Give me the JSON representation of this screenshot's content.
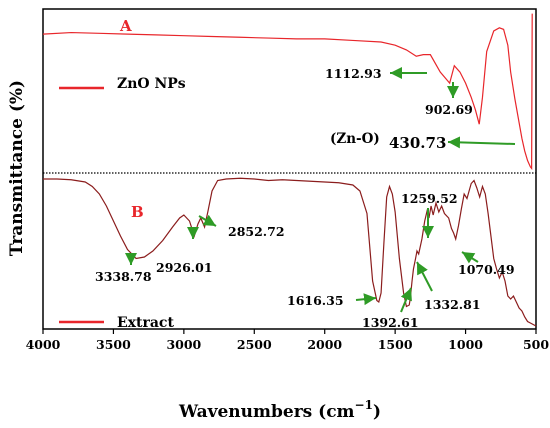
{
  "chart_data": {
    "type": "line",
    "xlabel": "Wavenumbers (cm",
    "xlabel_sup": "−1",
    "xlabel_close": ")",
    "ylabel": "Transmittance (%)",
    "xlim": [
      4000,
      500
    ],
    "x_reversed": true,
    "x_ticks": [
      4000,
      3500,
      3000,
      2500,
      2000,
      1500,
      1000,
      500
    ],
    "grid": false,
    "panels": [
      {
        "id": "A",
        "label": "A",
        "legend": "ZnO NPs",
        "legend_position": "top-left",
        "color": "#e8262b",
        "series": [
          [
            4000,
            0.86
          ],
          [
            3800,
            0.87
          ],
          [
            3600,
            0.865
          ],
          [
            3400,
            0.86
          ],
          [
            3200,
            0.855
          ],
          [
            3000,
            0.85
          ],
          [
            2800,
            0.845
          ],
          [
            2600,
            0.84
          ],
          [
            2400,
            0.835
          ],
          [
            2200,
            0.83
          ],
          [
            2000,
            0.83
          ],
          [
            1800,
            0.82
          ],
          [
            1600,
            0.81
          ],
          [
            1500,
            0.79
          ],
          [
            1420,
            0.76
          ],
          [
            1350,
            0.72
          ],
          [
            1300,
            0.73
          ],
          [
            1250,
            0.73
          ],
          [
            1180,
            0.62
          ],
          [
            1113,
            0.55
          ],
          [
            1080,
            0.66
          ],
          [
            1040,
            0.62
          ],
          [
            1000,
            0.55
          ],
          [
            960,
            0.46
          ],
          [
            930,
            0.38
          ],
          [
            903,
            0.29
          ],
          [
            880,
            0.46
          ],
          [
            850,
            0.75
          ],
          [
            800,
            0.88
          ],
          [
            760,
            0.9
          ],
          [
            730,
            0.89
          ],
          [
            700,
            0.79
          ],
          [
            680,
            0.62
          ],
          [
            650,
            0.45
          ],
          [
            620,
            0.3
          ],
          [
            600,
            0.2
          ],
          [
            580,
            0.12
          ],
          [
            560,
            0.06
          ],
          [
            540,
            0.02
          ],
          [
            531,
            0.01
          ],
          [
            529,
            0.5
          ],
          [
            527,
            0.99
          ]
        ],
        "annotations": [
          {
            "text": "1112.93",
            "at": 1113,
            "y": 0.55
          },
          {
            "text": "902.69",
            "at": 903,
            "y": 0.29
          },
          {
            "text": "(Zn-O)",
            "at": 531,
            "y": 0.2
          },
          {
            "text": "430.73",
            "at": 531,
            "y": 0.2
          }
        ]
      },
      {
        "id": "B",
        "label": "B",
        "legend": "Extract",
        "legend_position": "bottom-left",
        "color": "#8b1d1d",
        "series": [
          [
            4000,
            0.98
          ],
          [
            3900,
            0.98
          ],
          [
            3800,
            0.975
          ],
          [
            3700,
            0.96
          ],
          [
            3650,
            0.93
          ],
          [
            3600,
            0.88
          ],
          [
            3550,
            0.8
          ],
          [
            3500,
            0.7
          ],
          [
            3450,
            0.6
          ],
          [
            3400,
            0.51
          ],
          [
            3339,
            0.45
          ],
          [
            3280,
            0.46
          ],
          [
            3220,
            0.5
          ],
          [
            3150,
            0.57
          ],
          [
            3080,
            0.66
          ],
          [
            3030,
            0.72
          ],
          [
            3000,
            0.74
          ],
          [
            2960,
            0.7
          ],
          [
            2926,
            0.6
          ],
          [
            2900,
            0.68
          ],
          [
            2880,
            0.72
          ],
          [
            2853,
            0.66
          ],
          [
            2830,
            0.76
          ],
          [
            2800,
            0.9
          ],
          [
            2760,
            0.97
          ],
          [
            2700,
            0.98
          ],
          [
            2600,
            0.985
          ],
          [
            2500,
            0.98
          ],
          [
            2400,
            0.97
          ],
          [
            2300,
            0.975
          ],
          [
            2200,
            0.97
          ],
          [
            2100,
            0.965
          ],
          [
            2000,
            0.96
          ],
          [
            1900,
            0.955
          ],
          [
            1800,
            0.94
          ],
          [
            1750,
            0.9
          ],
          [
            1700,
            0.75
          ],
          [
            1660,
            0.3
          ],
          [
            1630,
            0.17
          ],
          [
            1616,
            0.16
          ],
          [
            1600,
            0.22
          ],
          [
            1580,
            0.55
          ],
          [
            1560,
            0.86
          ],
          [
            1540,
            0.93
          ],
          [
            1520,
            0.88
          ],
          [
            1500,
            0.76
          ],
          [
            1470,
            0.45
          ],
          [
            1440,
            0.22
          ],
          [
            1420,
            0.13
          ],
          [
            1400,
            0.14
          ],
          [
            1393,
            0.18
          ],
          [
            1380,
            0.3
          ],
          [
            1370,
            0.38
          ],
          [
            1355,
            0.45
          ],
          [
            1345,
            0.5
          ],
          [
            1333,
            0.48
          ],
          [
            1310,
            0.58
          ],
          [
            1290,
            0.7
          ],
          [
            1270,
            0.78
          ],
          [
            1260,
            0.72
          ],
          [
            1245,
            0.8
          ],
          [
            1230,
            0.74
          ],
          [
            1210,
            0.82
          ],
          [
            1190,
            0.76
          ],
          [
            1170,
            0.8
          ],
          [
            1150,
            0.75
          ],
          [
            1120,
            0.72
          ],
          [
            1100,
            0.65
          ],
          [
            1085,
            0.62
          ],
          [
            1070,
            0.58
          ],
          [
            1050,
            0.67
          ],
          [
            1030,
            0.78
          ],
          [
            1010,
            0.88
          ],
          [
            990,
            0.85
          ],
          [
            975,
            0.9
          ],
          [
            960,
            0.95
          ],
          [
            940,
            0.97
          ],
          [
            920,
            0.92
          ],
          [
            900,
            0.86
          ],
          [
            880,
            0.93
          ],
          [
            860,
            0.88
          ],
          [
            840,
            0.75
          ],
          [
            820,
            0.6
          ],
          [
            800,
            0.45
          ],
          [
            780,
            0.38
          ],
          [
            760,
            0.32
          ],
          [
            740,
            0.36
          ],
          [
            720,
            0.3
          ],
          [
            700,
            0.2
          ],
          [
            680,
            0.18
          ],
          [
            660,
            0.2
          ],
          [
            640,
            0.16
          ],
          [
            620,
            0.12
          ],
          [
            600,
            0.1
          ],
          [
            580,
            0.06
          ],
          [
            560,
            0.03
          ],
          [
            540,
            0.02
          ],
          [
            520,
            0.01
          ],
          [
            500,
            0.0
          ]
        ],
        "annotations": [
          {
            "text": "3338.78",
            "at": 3339,
            "y": 0.45
          },
          {
            "text": "2926.01",
            "at": 2926,
            "y": 0.6
          },
          {
            "text": "2852.72",
            "at": 2853,
            "y": 0.66
          },
          {
            "text": "1616.35",
            "at": 1616,
            "y": 0.16
          },
          {
            "text": "1392.61",
            "at": 1393,
            "y": 0.18
          },
          {
            "text": "1332.81",
            "at": 1333,
            "y": 0.48
          },
          {
            "text": "1259.52",
            "at": 1260,
            "y": 0.72
          },
          {
            "text": "1070.49",
            "at": 1070,
            "y": 0.58
          }
        ]
      }
    ]
  }
}
